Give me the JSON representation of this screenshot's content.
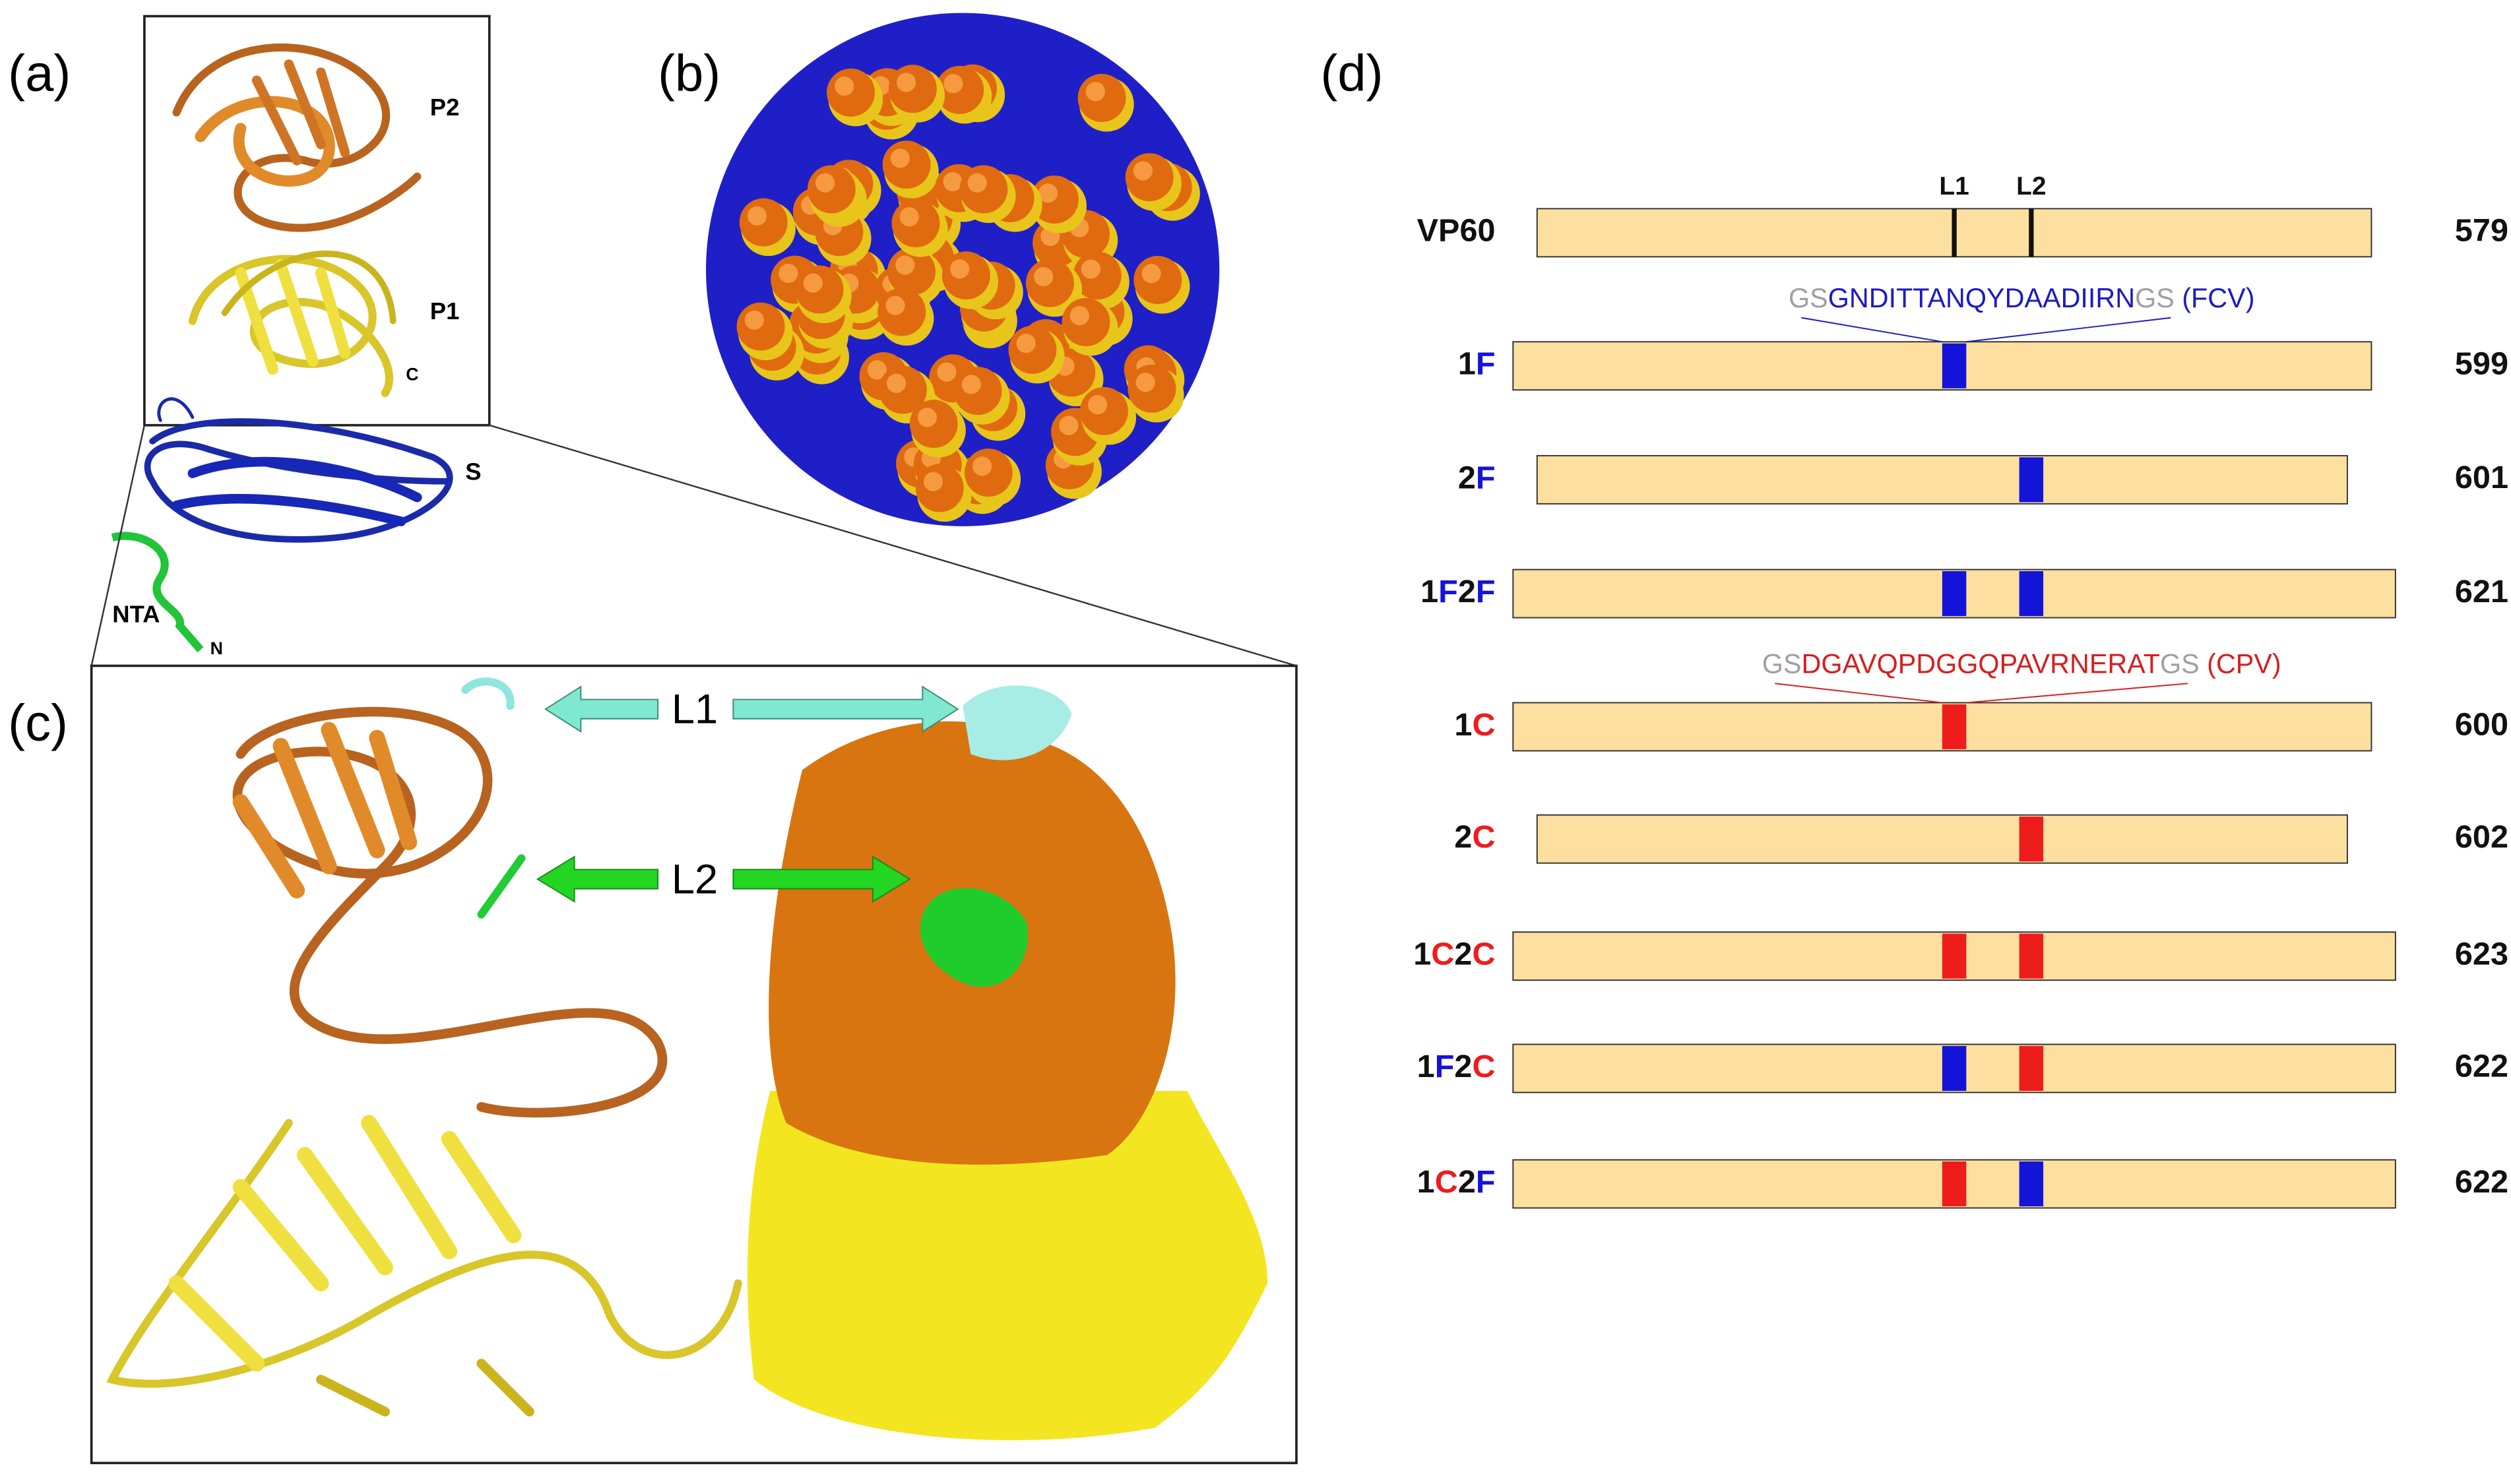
{
  "panels": {
    "a": "(a)",
    "b": "(b)",
    "c": "(c)",
    "d": "(d)"
  },
  "structure_labels": {
    "p2": "P2",
    "p1": "P1",
    "c_term": "C",
    "s": "S",
    "nta": "NTA",
    "n_term": "N"
  },
  "panel_c": {
    "l1": "L1",
    "l2": "L2"
  },
  "panel_d": {
    "sites": [
      "L1",
      "L2"
    ],
    "reference": {
      "name": "VP60",
      "length": 579
    },
    "inserts": [
      {
        "parts": [
          {
            "text": "GS",
            "color": "#a0a0a0"
          },
          {
            "text": "GNDITTANQYDAADIIRN",
            "color": "#1c1cc0"
          },
          {
            "text": "GS",
            "color": "#a0a0a0"
          },
          {
            "text": " (FCV)",
            "color": "#1c1cc0"
          }
        ]
      },
      {
        "parts": [
          {
            "text": "GS",
            "color": "#a0a0a0"
          },
          {
            "text": "DGAVQPDGGQPAVRNERAT",
            "color": "#d42020"
          },
          {
            "text": "GS",
            "color": "#a0a0a0"
          },
          {
            "text": " (CPV)",
            "color": "#d42020"
          }
        ]
      }
    ],
    "constructs": [
      {
        "name": [
          {
            "text": "1",
            "color": "#111111"
          },
          {
            "text": "F",
            "color": "#1414d8"
          }
        ],
        "length": 599
      },
      {
        "name": [
          {
            "text": "2",
            "color": "#111111"
          },
          {
            "text": "F",
            "color": "#1414d8"
          }
        ],
        "length": 601
      },
      {
        "name": [
          {
            "text": "1",
            "color": "#111111"
          },
          {
            "text": "F",
            "color": "#1414d8"
          },
          {
            "text": "2",
            "color": "#111111"
          },
          {
            "text": "F",
            "color": "#1414d8"
          }
        ],
        "length": 621
      },
      {
        "name": [
          {
            "text": "1",
            "color": "#111111"
          },
          {
            "text": "C",
            "color": "#ee1c1c"
          }
        ],
        "length": 600
      },
      {
        "name": [
          {
            "text": "2",
            "color": "#111111"
          },
          {
            "text": "C",
            "color": "#ee1c1c"
          }
        ],
        "length": 602
      },
      {
        "name": [
          {
            "text": "1",
            "color": "#111111"
          },
          {
            "text": "C",
            "color": "#ee1c1c"
          },
          {
            "text": "2",
            "color": "#111111"
          },
          {
            "text": "C",
            "color": "#ee1c1c"
          }
        ],
        "length": 623
      },
      {
        "name": [
          {
            "text": "1",
            "color": "#111111"
          },
          {
            "text": "F",
            "color": "#1414d8"
          },
          {
            "text": "2",
            "color": "#111111"
          },
          {
            "text": "C",
            "color": "#ee1c1c"
          }
        ],
        "length": 622
      },
      {
        "name": [
          {
            "text": "1",
            "color": "#111111"
          },
          {
            "text": "C",
            "color": "#ee1c1c"
          },
          {
            "text": "2",
            "color": "#111111"
          },
          {
            "text": "F",
            "color": "#1414d8"
          }
        ],
        "length": 622
      }
    ]
  }
}
